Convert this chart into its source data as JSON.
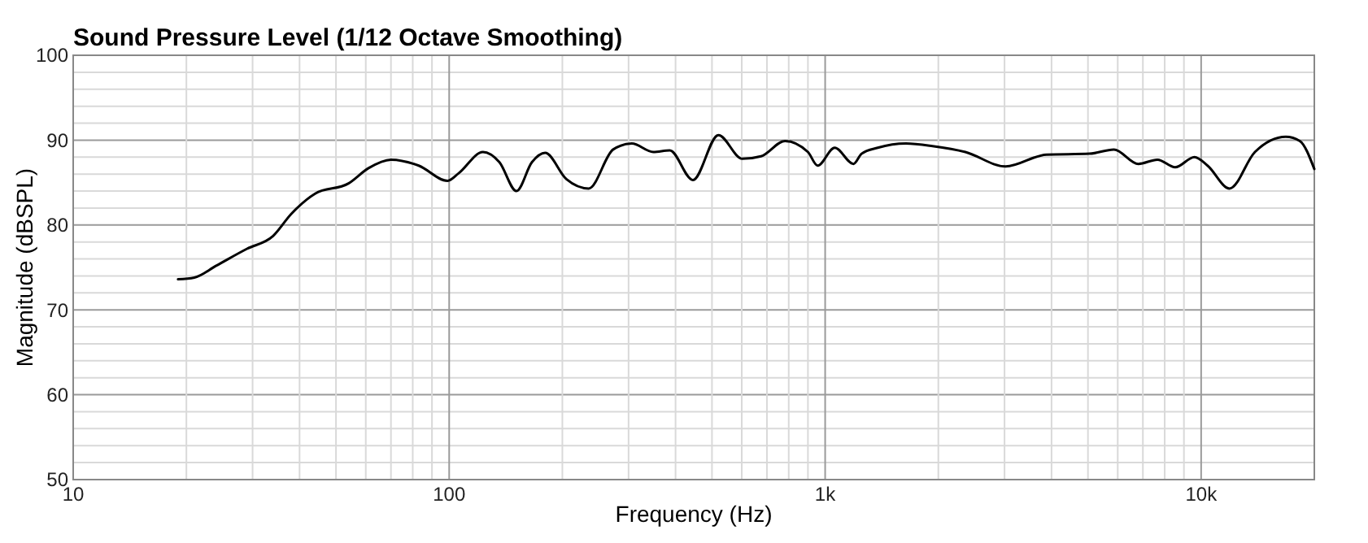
{
  "chart_data": {
    "type": "line",
    "title": "Sound Pressure Level (1/12 Octave Smoothing)",
    "xlabel": "Frequency (Hz)",
    "ylabel": "Magnitude (dBSPL)",
    "log": "x",
    "grid": true,
    "line_style": "solid",
    "marker": "none",
    "xlim": [
      10,
      20000
    ],
    "ylim": [
      50,
      100
    ],
    "xticks": [
      10,
      {
        "value": 20,
        "label": null
      },
      {
        "value": 30,
        "label": null
      },
      {
        "value": 40,
        "label": null
      },
      {
        "value": 50,
        "label": null
      },
      {
        "value": 60,
        "label": null
      },
      {
        "value": 70,
        "label": null
      },
      {
        "value": 80,
        "label": null
      },
      {
        "value": 90,
        "label": null
      },
      100,
      {
        "value": 200,
        "label": null
      },
      {
        "value": 300,
        "label": null
      },
      {
        "value": 400,
        "label": null
      },
      {
        "value": 500,
        "label": null
      },
      {
        "value": 600,
        "label": null
      },
      {
        "value": 700,
        "label": null
      },
      {
        "value": 800,
        "label": null
      },
      {
        "value": 900,
        "label": null
      },
      {
        "value": 1000,
        "label": "1k"
      },
      {
        "value": 2000,
        "label": null
      },
      {
        "value": 3000,
        "label": null
      },
      {
        "value": 4000,
        "label": null
      },
      {
        "value": 5000,
        "label": null
      },
      {
        "value": 6000,
        "label": null
      },
      {
        "value": 7000,
        "label": null
      },
      {
        "value": 8000,
        "label": null
      },
      {
        "value": 9000,
        "label": null
      },
      {
        "value": 10000,
        "label": "10k"
      }
    ],
    "yticks": [
      50,
      {
        "value": 52,
        "label": null
      },
      {
        "value": 54,
        "label": null
      },
      {
        "value": 56,
        "label": null
      },
      {
        "value": 58,
        "label": null
      },
      60,
      {
        "value": 62,
        "label": null
      },
      {
        "value": 64,
        "label": null
      },
      {
        "value": 66,
        "label": null
      },
      {
        "value": 68,
        "label": null
      },
      70,
      {
        "value": 72,
        "label": null
      },
      {
        "value": 74,
        "label": null
      },
      {
        "value": 76,
        "label": null
      },
      {
        "value": 78,
        "label": null
      },
      80,
      {
        "value": 82,
        "label": null
      },
      {
        "value": 84,
        "label": null
      },
      {
        "value": 86,
        "label": null
      },
      {
        "value": 88,
        "label": null
      },
      90,
      {
        "value": 92,
        "label": null
      },
      {
        "value": 94,
        "label": null
      },
      {
        "value": 96,
        "label": null
      },
      {
        "value": 98,
        "label": null
      },
      100
    ],
    "series": [
      {
        "color": "#000000",
        "x": [
          19,
          21,
          24,
          29,
          34,
          38,
          44,
          54,
          61,
          70,
          83,
          99,
          106,
          123,
          136,
          151,
          166,
          180,
          205,
          235,
          273,
          306,
          349,
          386,
          445,
          520,
          602,
          675,
          782,
          900,
          955,
          1060,
          1190,
          1250,
          1380,
          1640,
          1930,
          2360,
          3020,
          3880,
          5050,
          5860,
          6810,
          7650,
          8530,
          9600,
          10400,
          11900,
          13900,
          16800,
          18300,
          20000
        ],
        "values": [
          73.6,
          73.8,
          75.2,
          77.2,
          78.7,
          81.3,
          83.7,
          84.9,
          86.7,
          87.7,
          87.0,
          85.2,
          86.1,
          88.6,
          87.4,
          84.0,
          87.4,
          88.5,
          85.4,
          84.3,
          88.9,
          89.6,
          88.6,
          88.8,
          85.3,
          90.6,
          87.8,
          88.1,
          89.9,
          88.6,
          87.0,
          89.1,
          87.2,
          88.4,
          89.1,
          89.6,
          89.3,
          88.6,
          86.9,
          88.3,
          88.4,
          88.9,
          87.2,
          87.7,
          86.8,
          88.0,
          87.0,
          84.3,
          88.6,
          90.4,
          89.9,
          86.6
        ]
      }
    ]
  }
}
